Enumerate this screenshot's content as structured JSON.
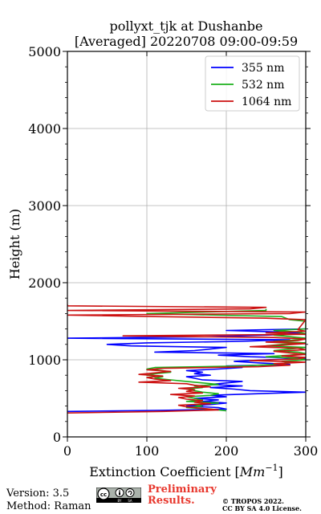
{
  "chart_data": {
    "type": "line",
    "title": "pollyxt_tjk at Dushanbe",
    "subtitle": "[Averaged] 20220708 09:00-09:59",
    "xlabel_text": "Extinction Coefficient [",
    "xlabel_unit": "Mm",
    "xlabel_exp": "−1",
    "xlabel_close": "]",
    "ylabel": "Height (m)",
    "xlim": [
      0,
      300
    ],
    "ylim": [
      0,
      5000
    ],
    "xticks": [
      0,
      100,
      200,
      300
    ],
    "yticks": [
      0,
      1000,
      2000,
      3000,
      4000,
      5000
    ],
    "grid": true,
    "legend_position": "top-right",
    "series": [
      {
        "name": "355 nm",
        "color": "#0000ff",
        "y": [
          330,
          345,
          360,
          380,
          400,
          420,
          440,
          460,
          480,
          500,
          520,
          540,
          560,
          580,
          600,
          620,
          640,
          660,
          680,
          700,
          720,
          740,
          760,
          780,
          800,
          820,
          840,
          860,
          880,
          900,
          920,
          940,
          960,
          980,
          1000,
          1020,
          1040,
          1060,
          1080,
          1100,
          1120,
          1140,
          1160,
          1180,
          1200,
          1220,
          1240,
          1260,
          1280,
          1300,
          1320,
          1340,
          1360,
          1380,
          1400
        ],
        "x": [
          0,
          120,
          200,
          190,
          150,
          180,
          200,
          170,
          190,
          160,
          200,
          180,
          240,
          300,
          230,
          210,
          180,
          220,
          180,
          200,
          220,
          170,
          160,
          150,
          180,
          160,
          170,
          150,
          190,
          220,
          200,
          280,
          240,
          210,
          250,
          300,
          230,
          190,
          260,
          110,
          160,
          180,
          200,
          80,
          50,
          100,
          220,
          280,
          0,
          180,
          250,
          300,
          270,
          200,
          300
        ]
      },
      {
        "name": "532 nm",
        "color": "#1cb01c",
        "y": [
          340,
          360,
          380,
          400,
          420,
          440,
          460,
          480,
          500,
          520,
          540,
          560,
          580,
          600,
          620,
          640,
          660,
          680,
          700,
          720,
          740,
          760,
          780,
          800,
          820,
          840,
          860,
          880,
          900,
          920,
          940,
          960,
          980,
          1000,
          1020,
          1040,
          1060,
          1080,
          1100,
          1120,
          1140,
          1160,
          1180,
          1200,
          1220,
          1240,
          1260,
          1280,
          1300,
          1320,
          1340,
          1360,
          1380,
          1400,
          1500,
          1520,
          1560,
          1600,
          1640,
          1660
        ],
        "x": [
          200,
          180,
          150,
          170,
          160,
          190,
          150,
          170,
          160,
          150,
          180,
          190,
          170,
          160,
          150,
          170,
          160,
          190,
          170,
          150,
          130,
          110,
          120,
          100,
          110,
          130,
          120,
          100,
          110,
          220,
          260,
          280,
          270,
          300,
          290,
          250,
          280,
          300,
          290,
          260,
          280,
          300,
          250,
          270,
          300,
          260,
          290,
          300,
          280,
          260,
          300,
          290,
          260,
          300,
          300,
          280,
          270,
          100,
          250,
          250
        ]
      },
      {
        "name": "1064 nm",
        "color": "#cc1111",
        "y": [
          310,
          330,
          350,
          370,
          390,
          410,
          430,
          450,
          470,
          490,
          510,
          530,
          550,
          570,
          590,
          610,
          630,
          650,
          670,
          690,
          710,
          730,
          750,
          770,
          790,
          810,
          830,
          850,
          870,
          890,
          910,
          930,
          950,
          970,
          990,
          1010,
          1030,
          1050,
          1070,
          1090,
          1110,
          1130,
          1150,
          1170,
          1190,
          1210,
          1230,
          1250,
          1270,
          1290,
          1310,
          1330,
          1350,
          1370,
          1390,
          1520,
          1540,
          1560,
          1580,
          1600,
          1620,
          1640,
          1660,
          1680,
          1700,
          1720
        ],
        "x": [
          0,
          120,
          190,
          170,
          150,
          140,
          180,
          160,
          170,
          150,
          140,
          160,
          130,
          170,
          150,
          160,
          140,
          180,
          160,
          150,
          90,
          130,
          110,
          100,
          120,
          90,
          110,
          130,
          100,
          120,
          240,
          280,
          260,
          300,
          230,
          290,
          300,
          270,
          300,
          280,
          260,
          300,
          290,
          230,
          270,
          300,
          250,
          290,
          300,
          260,
          70,
          300,
          250,
          300,
          290,
          300,
          250,
          110,
          0,
          280,
          300,
          0,
          230,
          250,
          0,
          0
        ]
      }
    ]
  },
  "footer": {
    "version": "Version: 3.5",
    "method": "Method: Raman",
    "preliminary_line1": "Preliminary",
    "preliminary_line2": "Results.",
    "copyright_line1": "© TROPOS 2022.",
    "copyright_line2": "CC BY SA 4.0 License.",
    "license_logo": "cc-by-sa-badge-icon"
  }
}
